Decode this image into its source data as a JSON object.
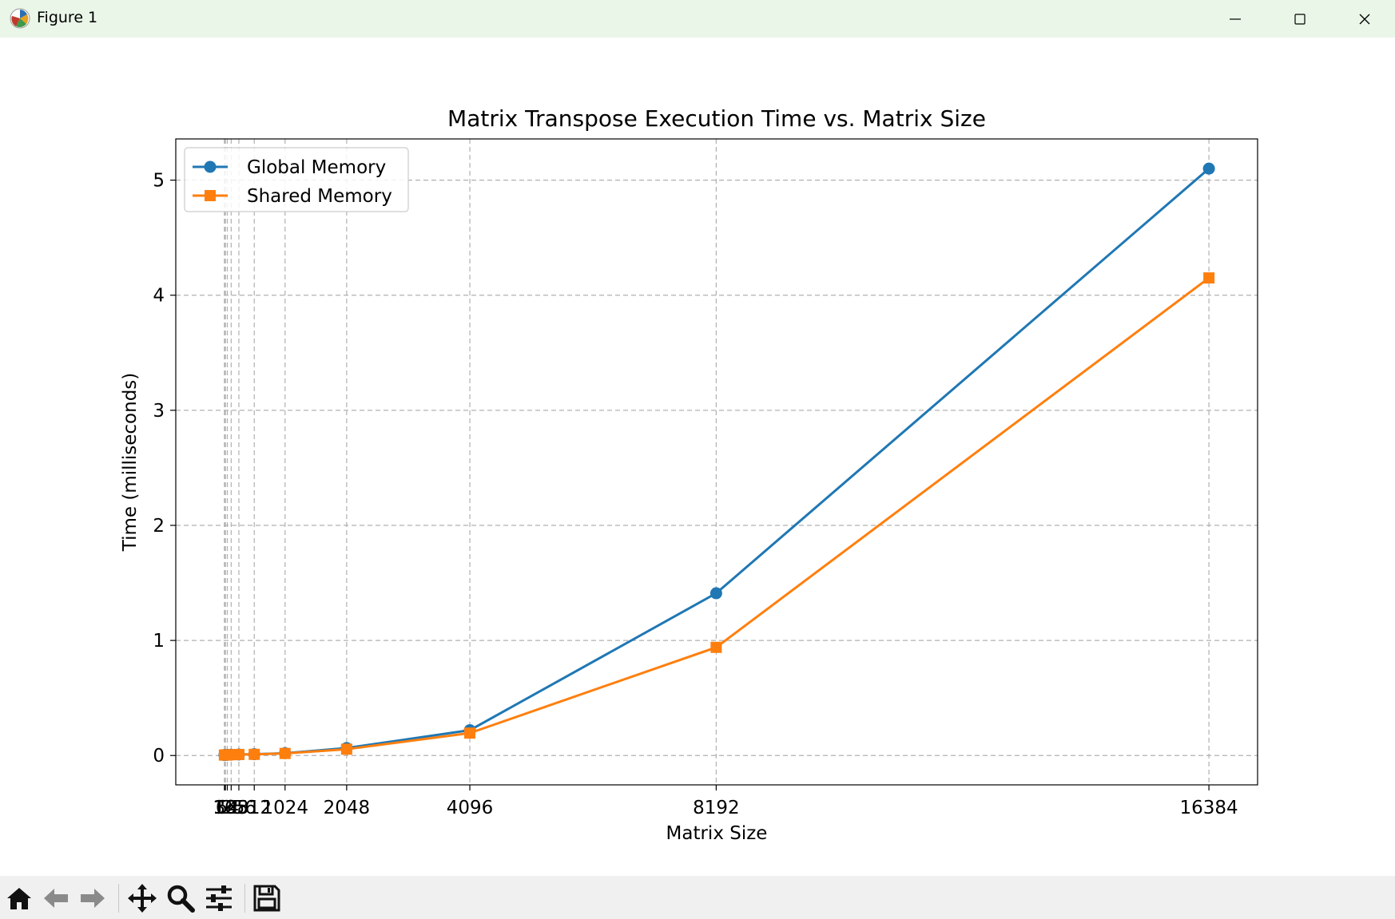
{
  "window": {
    "title": "Figure 1",
    "app_icon": "matplotlib-icon",
    "controls": [
      "minimize-icon",
      "maximize-icon",
      "close-icon"
    ]
  },
  "toolbar": {
    "tools": [
      {
        "name": "home-button",
        "icon": "home-icon"
      },
      {
        "name": "back-button",
        "icon": "arrow-left-icon"
      },
      {
        "name": "forward-button",
        "icon": "arrow-right-icon"
      },
      {
        "name": "pan-button",
        "icon": "move-icon"
      },
      {
        "name": "zoom-button",
        "icon": "magnifier-icon"
      },
      {
        "name": "configure-subplots-button",
        "icon": "sliders-icon"
      },
      {
        "name": "save-button",
        "icon": "floppy-disk-icon"
      }
    ]
  },
  "chart_data": {
    "type": "line",
    "title": "Matrix Transpose Execution Time vs. Matrix Size",
    "xlabel": "Matrix Size",
    "ylabel": "Time (milliseconds)",
    "x": [
      16,
      32,
      64,
      128,
      256,
      512,
      1024,
      2048,
      4096,
      8192,
      16384
    ],
    "xticks": [
      16,
      32,
      64,
      128,
      256,
      512,
      1024,
      2048,
      4096,
      8192,
      16384
    ],
    "yticks": [
      0,
      1,
      2,
      3,
      4,
      5
    ],
    "xlim": [
      -793,
      17193
    ],
    "ylim": [
      -0.255,
      5.358
    ],
    "grid": true,
    "legend_position": "upper-left",
    "series": [
      {
        "name": "Global Memory",
        "color": "#1f77b4",
        "marker": "circle",
        "values": [
          0.004,
          0.005,
          0.006,
          0.007,
          0.009,
          0.011,
          0.02,
          0.065,
          0.22,
          1.41,
          5.1
        ]
      },
      {
        "name": "Shared Memory",
        "color": "#ff7f0e",
        "marker": "square",
        "values": [
          0.004,
          0.005,
          0.006,
          0.007,
          0.009,
          0.01,
          0.018,
          0.055,
          0.195,
          0.94,
          4.15
        ]
      }
    ]
  }
}
